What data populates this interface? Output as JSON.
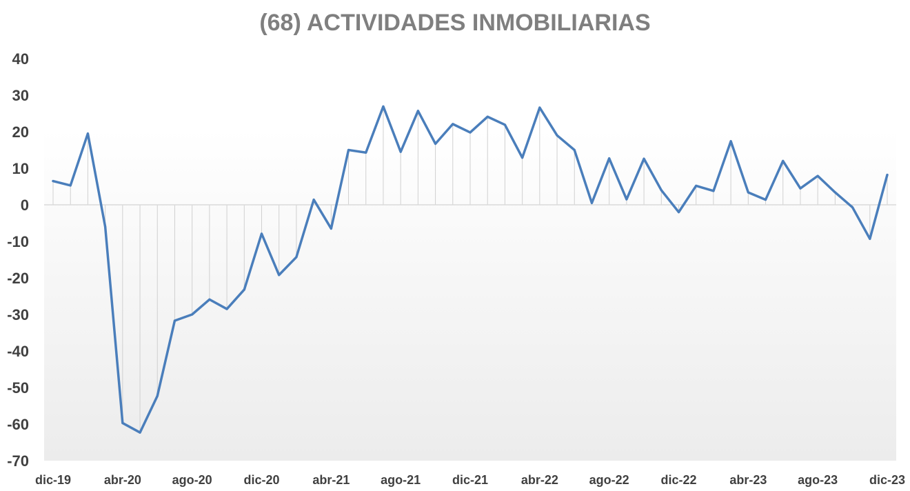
{
  "chart_data": {
    "type": "line",
    "title": "(68) ACTIVIDADES INMOBILIARIAS",
    "xlabel": "",
    "ylabel": "",
    "ylim": [
      -70,
      40
    ],
    "yticks": [
      40,
      30,
      20,
      10,
      0,
      -10,
      -20,
      -30,
      -40,
      -50,
      -60,
      -70
    ],
    "grid": false,
    "legend": "none",
    "x": [
      "dic-19",
      "ene-20",
      "feb-20",
      "mar-20",
      "abr-20",
      "may-20",
      "jun-20",
      "jul-20",
      "ago-20",
      "sep-20",
      "oct-20",
      "nov-20",
      "dic-20",
      "ene-21",
      "feb-21",
      "mar-21",
      "abr-21",
      "may-21",
      "jun-21",
      "jul-21",
      "ago-21",
      "sep-21",
      "oct-21",
      "nov-21",
      "dic-21",
      "ene-22",
      "feb-22",
      "mar-22",
      "abr-22",
      "may-22",
      "jun-22",
      "jul-22",
      "ago-22",
      "sep-22",
      "oct-22",
      "nov-22",
      "dic-22",
      "ene-23",
      "feb-23",
      "mar-23",
      "abr-23",
      "may-23",
      "jun-23",
      "jul-23",
      "ago-23",
      "sep-23",
      "oct-23",
      "nov-23",
      "dic-23"
    ],
    "xtick_labels": [
      "dic-19",
      "abr-20",
      "ago-20",
      "dic-20",
      "abr-21",
      "ago-21",
      "dic-21",
      "abr-22",
      "ago-22",
      "dic-22",
      "abr-23",
      "ago-23",
      "dic-23"
    ],
    "series": [
      {
        "values": [
          6.5,
          5.3,
          19.5,
          -6.0,
          -59.7,
          -62.3,
          -52.3,
          -31.7,
          -30.0,
          -25.9,
          -28.5,
          -23.2,
          -7.9,
          -19.2,
          -14.3,
          1.4,
          -6.5,
          15.0,
          14.3,
          26.9,
          14.5,
          25.7,
          16.7,
          22.1,
          19.8,
          24.1,
          21.9,
          12.9,
          26.6,
          19.0,
          15.0,
          0.5,
          12.7,
          1.5,
          12.6,
          4.0,
          -2.0,
          5.2,
          3.8,
          17.4,
          3.4,
          1.4,
          12.0,
          4.5,
          7.9,
          3.4,
          -0.7,
          -9.3,
          8.2
        ],
        "color": "#4a7ebb"
      }
    ],
    "colors": {
      "line": "#4a7ebb",
      "title": "#7f7f7f",
      "tick_text": "#404040",
      "drop_line": "#d0d0d0",
      "axis_line": "#d9d9d9",
      "plot_bg_top": "#ffffff",
      "plot_bg_bottom": "#ececec"
    }
  }
}
